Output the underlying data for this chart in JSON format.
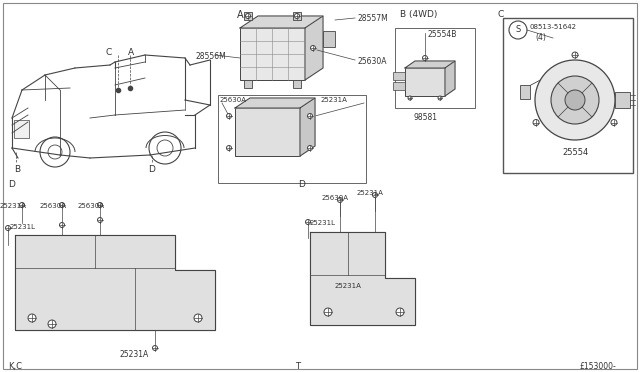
{
  "bg_color": "#ffffff",
  "line_color": "#444444",
  "text_color": "#333333",
  "bottom_left": "K,C",
  "bottom_center": "T",
  "bottom_right": "£153000-",
  "fig_width": 6.4,
  "fig_height": 3.72,
  "dpi": 100
}
